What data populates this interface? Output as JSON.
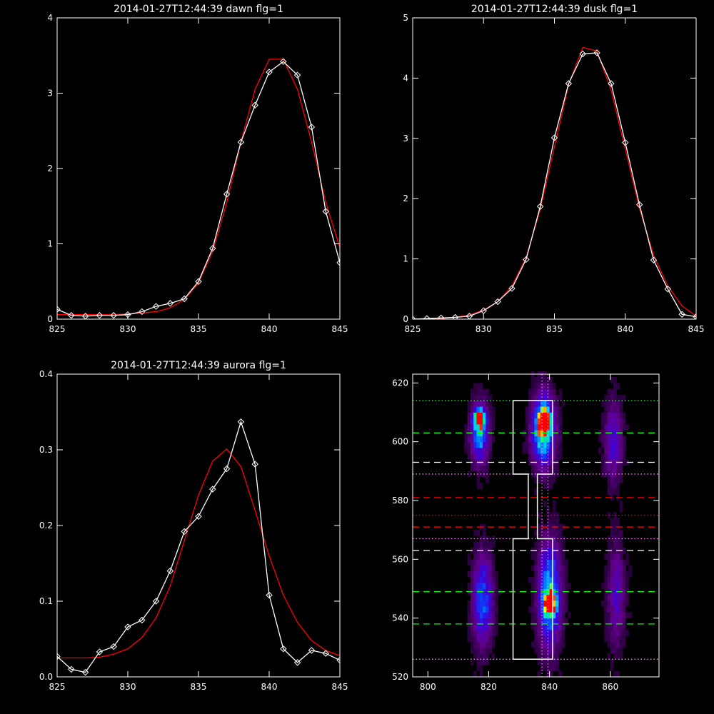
{
  "colors": {
    "background": "#000000",
    "axes": "#ffffff",
    "observed": "#ffffff",
    "fit": "#ff0000"
  },
  "chart_data": [
    {
      "type": "line",
      "title": "2014-01-27T12:44:39 dawn flg=1",
      "xlim": [
        825,
        845
      ],
      "ylim": [
        0,
        4
      ],
      "xticks": [
        "825",
        "830",
        "835",
        "840",
        "845"
      ],
      "yticks": [
        "0",
        "1",
        "2",
        "3",
        "4"
      ],
      "x": [
        825,
        826,
        827,
        828,
        829,
        830,
        831,
        832,
        833,
        834,
        835,
        836,
        837,
        838,
        839,
        840,
        841,
        842,
        843,
        844,
        845
      ],
      "series": [
        {
          "role": "observed",
          "marker": "diamond",
          "values": [
            0.13,
            0.05,
            0.04,
            0.05,
            0.05,
            0.06,
            0.1,
            0.17,
            0.21,
            0.27,
            0.5,
            0.94,
            1.66,
            2.35,
            2.84,
            3.28,
            3.42,
            3.24,
            2.55,
            1.43,
            0.75
          ]
        },
        {
          "role": "fit",
          "values": [
            0.06,
            0.06,
            0.06,
            0.06,
            0.06,
            0.07,
            0.08,
            0.1,
            0.15,
            0.26,
            0.48,
            0.9,
            1.55,
            2.35,
            3.05,
            3.45,
            3.45,
            3.05,
            2.35,
            1.55,
            0.95
          ]
        }
      ]
    },
    {
      "type": "line",
      "title": "2014-01-27T12:44:39 dusk flg=1",
      "xlim": [
        825,
        845
      ],
      "ylim": [
        0,
        5
      ],
      "xticks": [
        "825",
        "830",
        "835",
        "840",
        "845"
      ],
      "yticks": [
        "0",
        "1",
        "2",
        "3",
        "4",
        "5"
      ],
      "x": [
        825,
        826,
        827,
        828,
        829,
        830,
        831,
        832,
        833,
        834,
        835,
        836,
        837,
        838,
        839,
        840,
        841,
        842,
        843,
        844,
        845
      ],
      "series": [
        {
          "role": "observed",
          "marker": "diamond",
          "values": [
            0.0,
            0.01,
            0.02,
            0.03,
            0.05,
            0.14,
            0.29,
            0.51,
            0.99,
            1.87,
            3.01,
            3.91,
            4.4,
            4.42,
            3.91,
            2.93,
            1.9,
            0.98,
            0.5,
            0.08,
            0.04
          ]
        },
        {
          "role": "fit",
          "values": [
            -0.02,
            -0.01,
            0.01,
            0.03,
            0.07,
            0.15,
            0.29,
            0.55,
            1.02,
            1.82,
            2.86,
            3.89,
            4.51,
            4.45,
            3.8,
            2.82,
            1.84,
            1.06,
            0.55,
            0.22,
            0.05
          ]
        }
      ]
    },
    {
      "type": "line",
      "title": "2014-01-27T12:44:39 aurora flg=1",
      "xlim": [
        825,
        845
      ],
      "ylim": [
        0,
        0.4
      ],
      "xticks": [
        "825",
        "830",
        "835",
        "840",
        "845"
      ],
      "yticks": [
        "0.0",
        "0.1",
        "0.2",
        "0.3",
        "0.4"
      ],
      "x": [
        825,
        826,
        827,
        828,
        829,
        830,
        831,
        832,
        833,
        834,
        835,
        836,
        837,
        838,
        839,
        840,
        841,
        842,
        843,
        844,
        845
      ],
      "series": [
        {
          "role": "observed",
          "marker": "diamond",
          "values": [
            0.027,
            0.01,
            0.006,
            0.033,
            0.04,
            0.066,
            0.075,
            0.1,
            0.14,
            0.192,
            0.212,
            0.248,
            0.275,
            0.337,
            0.281,
            0.108,
            0.037,
            0.019,
            0.035,
            0.031,
            0.022
          ]
        },
        {
          "role": "fit",
          "values": [
            0.025,
            0.025,
            0.025,
            0.026,
            0.03,
            0.037,
            0.052,
            0.078,
            0.12,
            0.18,
            0.24,
            0.285,
            0.301,
            0.278,
            0.22,
            0.16,
            0.108,
            0.072,
            0.048,
            0.035,
            0.028
          ]
        }
      ]
    },
    {
      "type": "heatmap",
      "xlim": [
        795,
        876
      ],
      "ylim": [
        520,
        623
      ],
      "xticks": [
        "800",
        "820",
        "840",
        "860"
      ],
      "yticks": [
        "520",
        "540",
        "560",
        "580",
        "600",
        "620"
      ],
      "blobs": [
        {
          "x": 817,
          "y": 603,
          "sx": 2.0,
          "sy": 7,
          "amp": 0.55
        },
        {
          "x": 817,
          "y": 608,
          "sx": 1.2,
          "sy": 2,
          "amp": 0.95
        },
        {
          "x": 818,
          "y": 546,
          "sx": 2.2,
          "sy": 10,
          "amp": 0.5
        },
        {
          "x": 838,
          "y": 604,
          "sx": 2.5,
          "sy": 8,
          "amp": 0.78
        },
        {
          "x": 838,
          "y": 607,
          "sx": 1.3,
          "sy": 2.5,
          "amp": 1.0
        },
        {
          "x": 840,
          "y": 548,
          "sx": 2.5,
          "sy": 12,
          "amp": 0.62
        },
        {
          "x": 840,
          "y": 545,
          "sx": 1.4,
          "sy": 2.5,
          "amp": 1.0
        },
        {
          "x": 861,
          "y": 600,
          "sx": 2.0,
          "sy": 9,
          "amp": 0.32
        },
        {
          "x": 862,
          "y": 548,
          "sx": 2.0,
          "sy": 12,
          "amp": 0.26
        }
      ],
      "hlines": [
        {
          "y": 614,
          "color": "#00ff00",
          "dash": "dotted"
        },
        {
          "y": 603,
          "color": "#00ff00",
          "dash": "dashed"
        },
        {
          "y": 593,
          "color": "#ffffff",
          "dash": "dashed"
        },
        {
          "y": 589,
          "color": "#ff80ff",
          "dash": "dotted"
        },
        {
          "y": 581,
          "color": "#ff0000",
          "dash": "dashed"
        },
        {
          "y": 575,
          "color": "#ff0000",
          "dash": "dotted"
        },
        {
          "y": 571,
          "color": "#ff0000",
          "dash": "dashed"
        },
        {
          "y": 567,
          "color": "#ff80ff",
          "dash": "dotted"
        },
        {
          "y": 563,
          "color": "#ffffff",
          "dash": "dashed"
        },
        {
          "y": 549,
          "color": "#00ff00",
          "dash": "dashed"
        },
        {
          "y": 538,
          "color": "#00ff00",
          "dash": "dashed"
        },
        {
          "y": 526,
          "color": "#ff80ff",
          "dash": "dotted"
        }
      ],
      "vlines": [
        {
          "x": 837.5,
          "color": "#ff80ff",
          "dash": "dotted"
        },
        {
          "x": 839.5,
          "color": "#ff80ff",
          "dash": "dotted"
        }
      ],
      "region_outline": [
        [
          828,
          614
        ],
        [
          841,
          614
        ],
        [
          841,
          589
        ],
        [
          836,
          589
        ],
        [
          836,
          567
        ],
        [
          841,
          567
        ],
        [
          841,
          526
        ],
        [
          828,
          526
        ],
        [
          828,
          567
        ],
        [
          833,
          567
        ],
        [
          833,
          589
        ],
        [
          828,
          589
        ],
        [
          828,
          614
        ]
      ]
    }
  ]
}
